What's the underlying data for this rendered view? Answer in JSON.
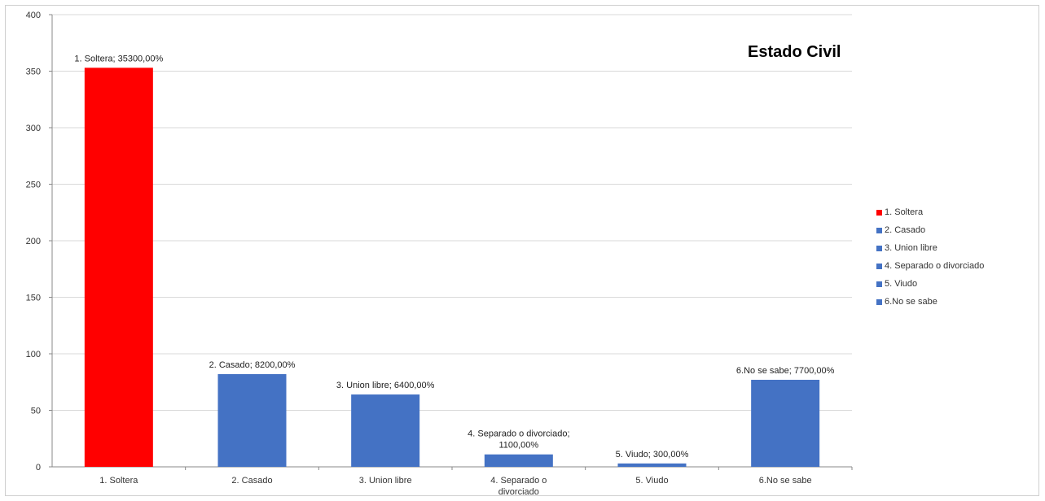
{
  "chart_data": {
    "type": "bar",
    "title": "Estado Civil",
    "categories": [
      "1. Soltera",
      "2. Casado",
      "3. Union libre",
      "4. Separado o divorciado",
      "5. Viudo",
      "6.No se sabe"
    ],
    "category_tick_labels": [
      [
        "1. Soltera"
      ],
      [
        "2. Casado"
      ],
      [
        "3. Union libre"
      ],
      [
        "4. Separado o",
        "divorciado"
      ],
      [
        "5. Viudo"
      ],
      [
        "6.No se sabe"
      ]
    ],
    "values": [
      353,
      82,
      64,
      11,
      3,
      77
    ],
    "data_labels": [
      [
        "1. Soltera; 35300,00%"
      ],
      [
        "2. Casado; 8200,00%"
      ],
      [
        "3. Union libre; 6400,00%"
      ],
      [
        "4. Separado o divorciado;",
        "1100,00%"
      ],
      [
        "5. Viudo; 300,00%"
      ],
      [
        "6.No se sabe; 7700,00%"
      ]
    ],
    "colors": [
      "#ff0000",
      "#4472c4",
      "#4472c4",
      "#4472c4",
      "#4472c4",
      "#4472c4"
    ],
    "ylim": [
      0,
      400
    ],
    "yticks": [
      0,
      50,
      100,
      150,
      200,
      250,
      300,
      350,
      400
    ],
    "grid": true,
    "legend": {
      "position": "right",
      "entries": [
        "1. Soltera",
        "2. Casado",
        "3. Union libre",
        "4. Separado o divorciado",
        "5. Viudo",
        "6.No se sabe"
      ]
    }
  }
}
